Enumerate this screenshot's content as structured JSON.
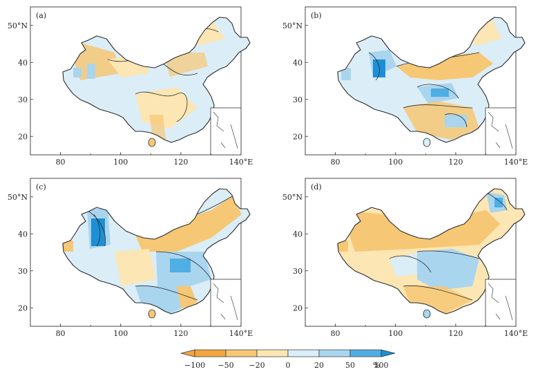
{
  "colors": {
    "orange_dark": "#f2a640",
    "orange": "#f6c774",
    "orange_light": "#fbe6b4",
    "blue_light": "#dbedf7",
    "blue": "#a9d5ee",
    "blue_dark": "#4faee3",
    "blue_deep": "#1c8fd6"
  },
  "axes": {
    "x_ticks": [
      "80",
      "100",
      "120",
      "140°E"
    ],
    "y_ticks": [
      "50°N",
      "40",
      "30",
      "20"
    ],
    "x_values": [
      80,
      100,
      120,
      140
    ],
    "y_values": [
      50,
      40,
      30,
      20
    ]
  },
  "panels": [
    {
      "label": "(a)"
    },
    {
      "label": "(b)"
    },
    {
      "label": "(c)"
    },
    {
      "label": "(d)"
    }
  ],
  "colorbar": {
    "labels": [
      "−100",
      "−50",
      "−20",
      "0",
      "20",
      "50",
      "100"
    ],
    "unit": "%",
    "values": [
      -100,
      -50,
      -20,
      0,
      20,
      50,
      100
    ]
  }
}
